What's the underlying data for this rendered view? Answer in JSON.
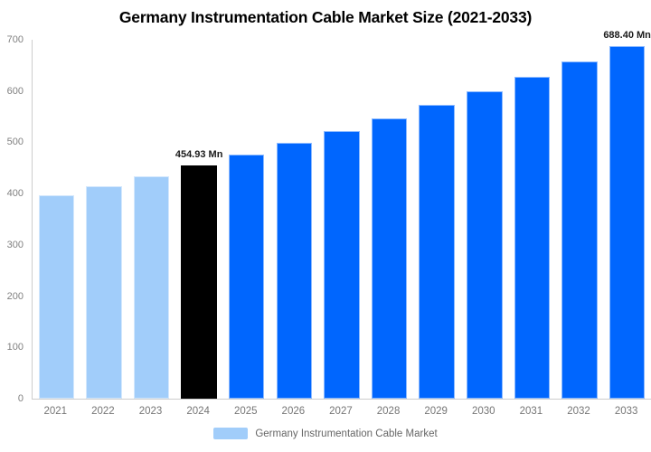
{
  "title": "Germany Instrumentation Cable Market Size (2021-2033)",
  "chart_data": {
    "type": "bar",
    "title": "Germany Instrumentation Cable Market Size (2021-2033)",
    "categories": [
      "2021",
      "2022",
      "2023",
      "2024",
      "2025",
      "2026",
      "2027",
      "2028",
      "2029",
      "2030",
      "2031",
      "2032",
      "2033"
    ],
    "values": [
      396.2,
      414.9,
      434.4,
      454.93,
      476.4,
      498.8,
      522.3,
      546.9,
      572.7,
      599.6,
      627.9,
      657.4,
      688.4
    ],
    "bar_labels": [
      "",
      "",
      "",
      "454.93 Mn",
      "",
      "",
      "",
      "",
      "",
      "",
      "",
      "",
      "688.40 Mn"
    ],
    "bar_colors": [
      "#A1CDFA",
      "#A1CDFA",
      "#A1CDFA",
      "#000000",
      "#0066FE",
      "#0066FE",
      "#0066FE",
      "#0066FE",
      "#0066FE",
      "#0066FE",
      "#0066FE",
      "#0066FE",
      "#0066FE"
    ],
    "series_name": "Germany Instrumentation Cable Market",
    "xlabel": "",
    "ylabel": "",
    "ylim": [
      0,
      700
    ],
    "y_ticks": [
      0,
      100,
      200,
      300,
      400,
      500,
      600,
      700
    ],
    "grid": false,
    "legend_position": "bottom",
    "units": "Mn"
  },
  "legend": {
    "label": "Germany Instrumentation Cable Market",
    "swatch_color": "#A1CDFA"
  },
  "colors": {
    "historical_bar": "#A1CDFA",
    "highlight_bar": "#000000",
    "forecast_bar": "#0066FE",
    "axis_line": "#CCCCCC",
    "tick_label": "#808080",
    "data_label": "#1A1A1A"
  }
}
